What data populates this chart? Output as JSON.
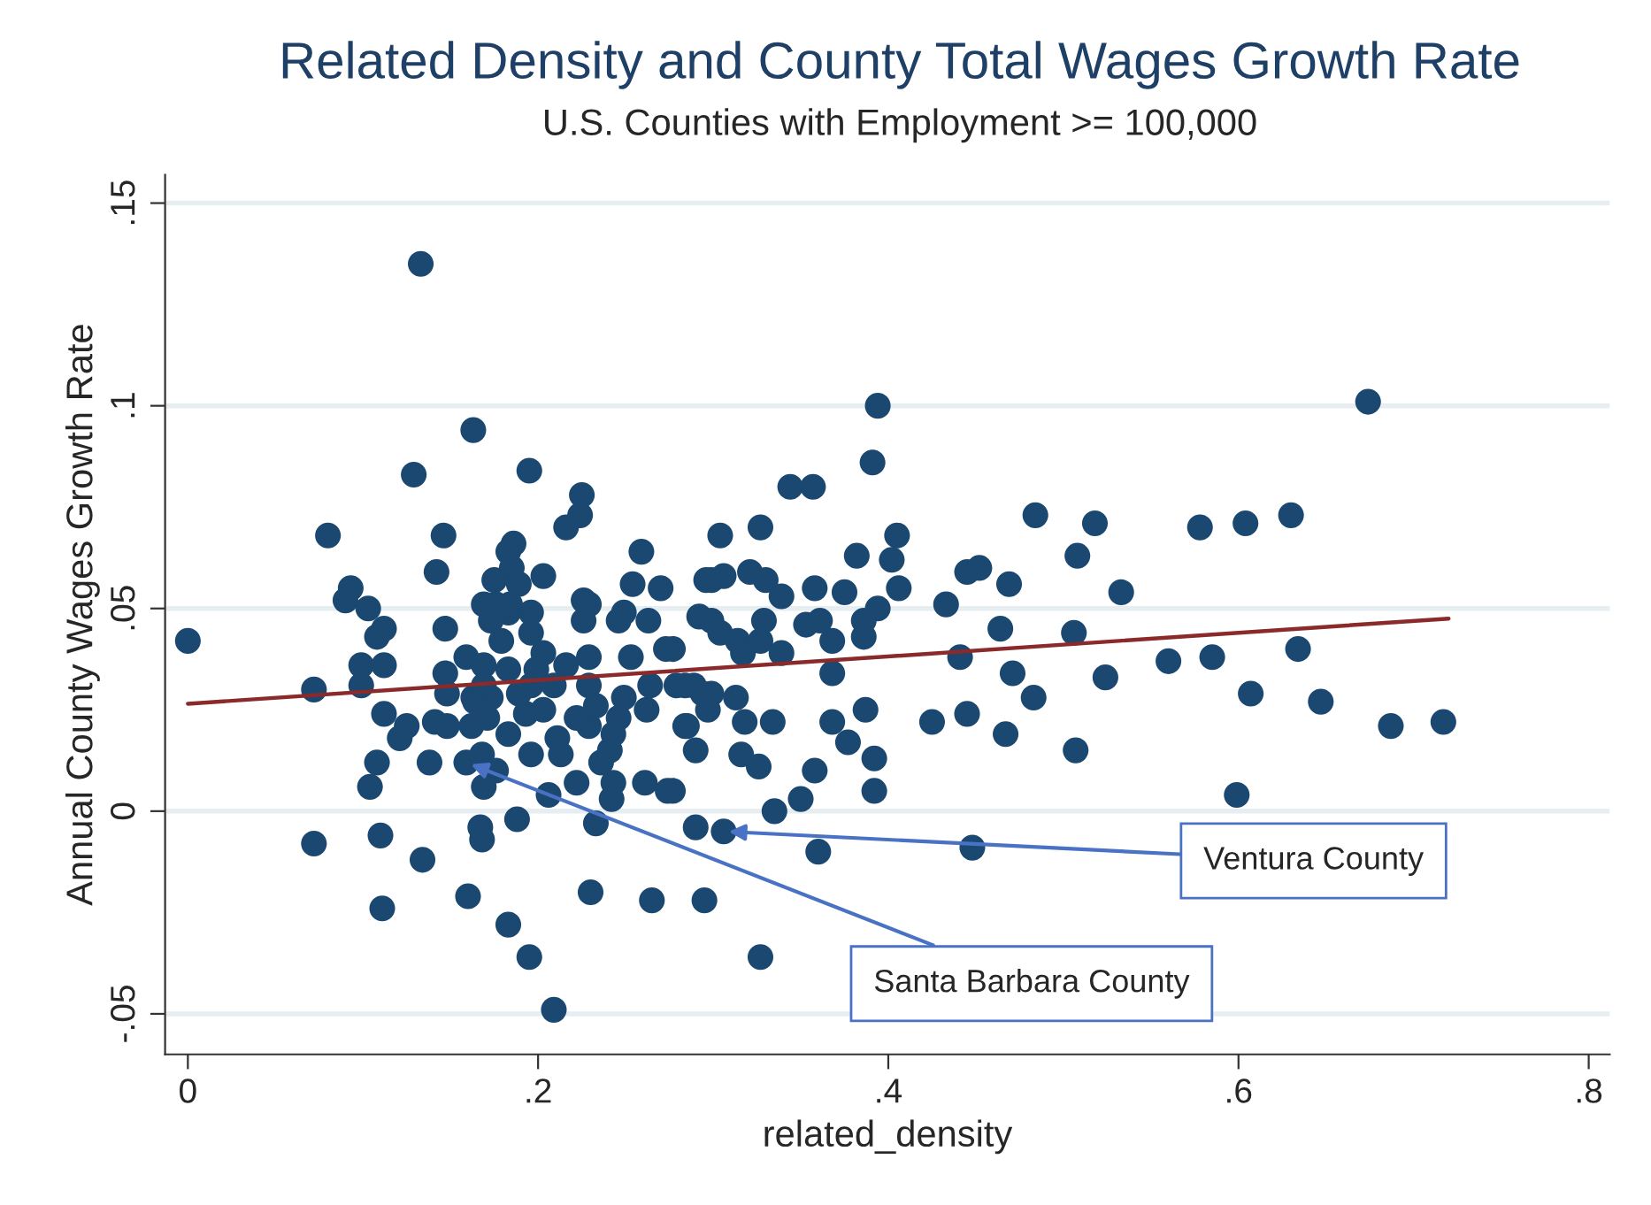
{
  "chart_data": {
    "type": "scatter",
    "title": "Related Density and County Total Wages Growth Rate",
    "subtitle": "U.S. Counties with Employment >= 100,000",
    "xlabel": "related_density",
    "ylabel": "Annual County Wages Growth Rate",
    "series": [
      {
        "marker": "circle",
        "color": "#1a4870",
        "x": [
          0.674,
          0.394,
          0.391,
          0.344,
          0.357,
          0.484,
          0.518,
          0.578,
          0.604,
          0.63,
          0.327,
          0.304,
          0.405,
          0.508,
          0.382,
          0.402,
          0.321,
          0.299,
          0.306,
          0.33,
          0.445,
          0.452,
          0.469,
          0.339,
          0.358,
          0.375,
          0.406,
          0.533,
          0.433,
          0.394,
          0.292,
          0.299,
          0.329,
          0.353,
          0.361,
          0.386,
          0.386,
          0.304,
          0.464,
          0.506,
          0.314,
          0.327,
          0.317,
          0.339,
          0.368,
          0.441,
          0.368,
          0.471,
          0.524,
          0.56,
          0.585,
          0.634,
          0.277,
          0.284,
          0.299,
          0.297,
          0.313,
          0.483,
          0.607,
          0.647,
          0.687,
          0.717,
          0.284,
          0.318,
          0.334,
          0.368,
          0.387,
          0.425,
          0.445,
          0.467,
          0.29,
          0.316,
          0.326,
          0.358,
          0.377,
          0.392,
          0.392,
          0.507,
          0.35,
          0.335,
          0.599,
          0.29,
          0.306,
          0.36,
          0.448,
          0.277,
          0.327,
          0.265,
          0.295,
          0.133,
          0.163,
          0.129,
          0.195,
          0.225,
          0.224,
          0.216,
          0.08,
          0.146,
          0.142,
          0.186,
          0.183,
          0.259,
          0.254,
          0.27,
          0.093,
          0.09,
          0.103,
          0.175,
          0.185,
          0.203,
          0.189,
          0.226,
          0.296,
          0.0,
          0.072,
          0.099,
          0.112,
          0.099,
          0.108,
          0.112,
          0.147,
          0.147,
          0.148,
          0.112,
          0.125,
          0.121,
          0.141,
          0.148,
          0.108,
          0.104,
          0.138,
          0.159,
          0.168,
          0.162,
          0.176,
          0.169,
          0.163,
          0.173,
          0.171,
          0.183,
          0.196,
          0.193,
          0.203,
          0.211,
          0.213,
          0.222,
          0.206,
          0.229,
          0.222,
          0.236,
          0.241,
          0.243,
          0.246,
          0.249,
          0.243,
          0.242,
          0.262,
          0.261,
          0.274,
          0.233,
          0.188,
          0.167,
          0.168,
          0.072,
          0.11,
          0.134,
          0.23,
          0.16,
          0.111,
          0.183,
          0.195,
          0.209,
          0.285,
          0.264,
          0.279,
          0.289,
          0.294,
          0.169,
          0.183,
          0.196,
          0.173,
          0.196,
          0.203,
          0.179,
          0.159,
          0.169,
          0.183,
          0.199,
          0.216,
          0.229,
          0.226,
          0.229,
          0.246,
          0.263,
          0.253,
          0.273,
          0.164,
          0.169,
          0.189,
          0.196,
          0.209,
          0.229,
          0.233,
          0.176,
          0.184,
          0.249
        ],
        "values": [
          0.101,
          0.1,
          0.086,
          0.08,
          0.08,
          0.073,
          0.071,
          0.07,
          0.071,
          0.073,
          0.07,
          0.068,
          0.068,
          0.063,
          0.063,
          0.062,
          0.059,
          0.057,
          0.058,
          0.057,
          0.059,
          0.06,
          0.056,
          0.053,
          0.055,
          0.054,
          0.055,
          0.054,
          0.051,
          0.05,
          0.048,
          0.047,
          0.047,
          0.046,
          0.047,
          0.047,
          0.043,
          0.044,
          0.045,
          0.044,
          0.042,
          0.042,
          0.039,
          0.039,
          0.042,
          0.038,
          0.034,
          0.034,
          0.033,
          0.037,
          0.038,
          0.04,
          0.04,
          0.031,
          0.029,
          0.025,
          0.028,
          0.028,
          0.029,
          0.027,
          0.021,
          0.022,
          0.021,
          0.022,
          0.022,
          0.022,
          0.025,
          0.022,
          0.024,
          0.019,
          0.015,
          0.014,
          0.011,
          0.01,
          0.017,
          0.013,
          0.005,
          0.015,
          0.003,
          0.0,
          0.004,
          -0.004,
          -0.005,
          -0.01,
          -0.009,
          0.005,
          -0.036,
          -0.022,
          -0.022,
          0.135,
          0.094,
          0.083,
          0.084,
          0.078,
          0.073,
          0.07,
          0.068,
          0.068,
          0.059,
          0.066,
          0.064,
          0.064,
          0.056,
          0.055,
          0.055,
          0.052,
          0.05,
          0.057,
          0.06,
          0.058,
          0.056,
          0.052,
          0.057,
          0.042,
          0.03,
          0.036,
          0.036,
          0.031,
          0.043,
          0.045,
          0.045,
          0.034,
          0.029,
          0.024,
          0.021,
          0.018,
          0.022,
          0.021,
          0.012,
          0.006,
          0.012,
          0.012,
          0.014,
          0.021,
          0.01,
          0.006,
          0.028,
          0.028,
          0.023,
          0.019,
          0.014,
          0.024,
          0.025,
          0.018,
          0.014,
          0.007,
          0.004,
          0.021,
          0.023,
          0.012,
          0.015,
          0.019,
          0.023,
          0.028,
          0.007,
          0.003,
          0.025,
          0.007,
          0.005,
          -0.003,
          -0.002,
          -0.004,
          -0.007,
          -0.008,
          -0.006,
          -0.012,
          -0.02,
          -0.021,
          -0.024,
          -0.028,
          -0.036,
          -0.049,
          0.021,
          0.031,
          0.031,
          0.031,
          0.029,
          0.051,
          0.049,
          0.049,
          0.047,
          0.044,
          0.039,
          0.042,
          0.038,
          0.036,
          0.035,
          0.035,
          0.036,
          0.038,
          0.047,
          0.051,
          0.047,
          0.047,
          0.038,
          0.04,
          0.027,
          0.031,
          0.029,
          0.031,
          0.031,
          0.031,
          0.026,
          0.051,
          0.051,
          0.049
        ]
      },
      {
        "type": "line",
        "marker": "none",
        "color": "#8b2a2a",
        "x": [
          0.0,
          0.72
        ],
        "values": [
          0.0265,
          0.0475
        ]
      }
    ],
    "annotations": [
      {
        "text": "Ventura County",
        "x": 0.306,
        "y": -0.005
      },
      {
        "text": "Santa Barbara County",
        "x": 0.159,
        "y": 0.012
      }
    ],
    "xlim": [
      -0.013,
      0.812
    ],
    "ylim": [
      -0.06,
      0.157
    ],
    "xticks": [
      0,
      {
        "value": 0.2,
        "label": ".2"
      },
      {
        "value": 0.4,
        "label": ".4"
      },
      {
        "value": 0.6,
        "label": ".6"
      },
      {
        "value": 0.8,
        "label": ".8"
      }
    ],
    "yticks": [
      {
        "value": -0.05,
        "label": "-.05"
      },
      0,
      {
        "value": 0.05,
        "label": ".05"
      },
      {
        "value": 0.1,
        "label": ".1"
      },
      {
        "value": 0.15,
        "label": ".15"
      }
    ],
    "grid": "y",
    "line_style": "solid"
  }
}
